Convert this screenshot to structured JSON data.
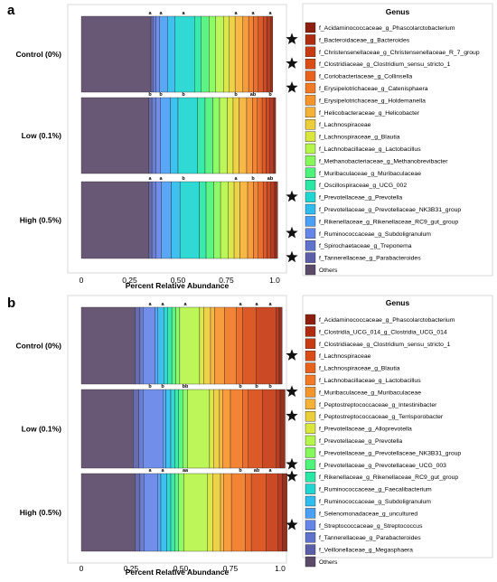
{
  "chart_data": [
    {
      "panel": "a",
      "type": "bar",
      "orientation": "horizontal-stacked",
      "xlabel": "Percent Relative Abundance",
      "xticks": [
        "0",
        "0.25",
        "0.50",
        "0.75",
        "1.0"
      ],
      "xlim": [
        0,
        1
      ],
      "legend_title": "Genus",
      "legend_position": "right",
      "groups": [
        "Control (0%)",
        "Low (0.1%)",
        "High (0.5%)"
      ],
      "series": [
        {
          "name": "Others",
          "color": "#5b4a6a",
          "values": [
            0.36,
            0.35,
            0.35
          ]
        },
        {
          "name": "f_Tannerellaceae_g_Parabacteroides",
          "starred": true,
          "color": "#5a5fa8",
          "values": [
            0.01,
            0.015,
            0.015
          ]
        },
        {
          "name": "f_Spirochaetaceae_g_Treponema",
          "color": "#5f73cc",
          "values": [
            0.015,
            0.02,
            0.02
          ]
        },
        {
          "name": "f_Ruminococcaceae_g_Subdoligranulum",
          "starred": true,
          "color": "#6586e8",
          "values": [
            0.02,
            0.025,
            0.03
          ]
        },
        {
          "name": "f_Rikenellaceae_g_Rikenellaceae_RC9_gut_group",
          "color": "#4ba0f5",
          "values": [
            0.04,
            0.05,
            0.05
          ]
        },
        {
          "name": "f_Prevotellaceae_g_Prevotellaceae_NK3B31_group",
          "color": "#2fbcee",
          "values": [
            0.04,
            0.04,
            0.045
          ]
        },
        {
          "name": "f_Prevotellaceae_g_Prevotella",
          "starred": true,
          "color": "#1fd6d0",
          "values": [
            0.1,
            0.1,
            0.1
          ]
        },
        {
          "name": "f_Oscillospiraceae_g_UCG_002",
          "color": "#29e8a5",
          "values": [
            0.035,
            0.04,
            0.035
          ]
        },
        {
          "name": "f_Muribaculaceae_g_Muribaculaceae",
          "color": "#4ef37a",
          "values": [
            0.04,
            0.04,
            0.04
          ]
        },
        {
          "name": "f_Methanobacteriaceae_g_Methanobrevibacter",
          "color": "#86f95a",
          "values": [
            0.035,
            0.035,
            0.035
          ]
        },
        {
          "name": "f_Lachnobacillaceae_g_Lactobacillus",
          "color": "#b6f54a",
          "values": [
            0.04,
            0.04,
            0.04
          ]
        },
        {
          "name": "f_Lachnospiraceae_g_Blautia",
          "color": "#d9e63b",
          "values": [
            0.03,
            0.03,
            0.03
          ]
        },
        {
          "name": "f_Lachnospiraceae",
          "color": "#eccd3a",
          "values": [
            0.03,
            0.03,
            0.03
          ]
        },
        {
          "name": "f_Helicobacteraceae_g_Helicobacter",
          "color": "#f6b236",
          "values": [
            0.04,
            0.04,
            0.04
          ]
        },
        {
          "name": "f_Erysipelotrichaceae_g_Holdemanella",
          "color": "#f7952d",
          "values": [
            0.03,
            0.03,
            0.03
          ]
        },
        {
          "name": "f_Erysipelotrichaceae_g_Catenisphaera",
          "starred": true,
          "color": "#f27a24",
          "values": [
            0.025,
            0.025,
            0.025
          ]
        },
        {
          "name": "f_Coriobacteriaceae_g_Collinsella",
          "color": "#e8621c",
          "values": [
            0.025,
            0.025,
            0.025
          ]
        },
        {
          "name": "f_Clostridiaceae_g_Clostridium_sensu_stricto_1",
          "starred": true,
          "color": "#d94c15",
          "values": [
            0.025,
            0.02,
            0.02
          ]
        },
        {
          "name": "f_Christensenellaceae_g_Christensenellaceae_R_7_group",
          "color": "#c73a12",
          "values": [
            0.02,
            0.02,
            0.02
          ]
        },
        {
          "name": "f_Bacteroidaceae_g_Bacteroides",
          "starred": true,
          "color": "#b02c10",
          "values": [
            0.02,
            0.02,
            0.02
          ]
        },
        {
          "name": "f_Acidaminococcaceae_g_Phascolarctobacterium",
          "color": "#8e1f0c",
          "values": [
            0.01,
            0.01,
            0.015
          ]
        }
      ],
      "significance_letters": [
        [
          "a",
          "a",
          "a",
          "a",
          "a",
          "a"
        ],
        [
          "b",
          "b",
          "b",
          "b",
          "ab",
          "b"
        ],
        [
          "a",
          "a",
          "b",
          "a",
          "b",
          "ab"
        ]
      ]
    },
    {
      "panel": "b",
      "type": "bar",
      "orientation": "horizontal-stacked",
      "xlabel": "Percent Relative Abundance",
      "xticks": [
        "0",
        "0.25",
        "0.50",
        "0.75",
        "1.0"
      ],
      "xlim": [
        0,
        1
      ],
      "legend_title": "Genus",
      "legend_position": "right",
      "groups": [
        "Control (0%)",
        "Low (0.1%)",
        "High (0.5%)"
      ],
      "series": [
        {
          "name": "Others",
          "color": "#5b4a6a",
          "values": [
            0.27,
            0.26,
            0.27
          ]
        },
        {
          "name": "f_Veillonellaceae_g_Megasphaera",
          "color": "#5a5fa8",
          "values": [
            0.025,
            0.03,
            0.025
          ]
        },
        {
          "name": "f_Tannerellaceae_g_Parabacteroides",
          "color": "#5f73cc",
          "values": [
            0.015,
            0.02,
            0.02
          ]
        },
        {
          "name": "f_Streptococcaceae_g_Streptococcus",
          "starred": true,
          "color": "#6586e8",
          "values": [
            0.06,
            0.1,
            0.07
          ]
        },
        {
          "name": "f_Selenomonadaceae_g_uncultured",
          "color": "#4ba0f5",
          "values": [
            0.015,
            0.015,
            0.015
          ]
        },
        {
          "name": "f_Ruminococcaceae_g_Subdoligranulum",
          "color": "#2fbcee",
          "values": [
            0.03,
            0.025,
            0.03
          ]
        },
        {
          "name": "f_Ruminococcaceae_g_Faecalibacterium",
          "color": "#1fd6d0",
          "values": [
            0.02,
            0.02,
            0.02
          ]
        },
        {
          "name": "f_Rikenellaceae_g_Rikenellaceae_RC9_gut_group",
          "starred": true,
          "color": "#29e8a5",
          "values": [
            0.02,
            0.02,
            0.02
          ]
        },
        {
          "name": "f_Prevotellaceae_g_Prevotellaceae_UCG_003",
          "starred": true,
          "color": "#4ef37a",
          "values": [
            0.02,
            0.02,
            0.02
          ]
        },
        {
          "name": "f_Prevotellaceae_g_Prevotellaceae_NK3B31_group",
          "color": "#86f95a",
          "values": [
            0.02,
            0.025,
            0.025
          ]
        },
        {
          "name": "f_Prevotellaceae_g_Prevotella",
          "color": "#b6f54a",
          "values": [
            0.1,
            0.11,
            0.12
          ]
        },
        {
          "name": "f_Prevotellaceae_g_Alloprevotella",
          "color": "#d9e63b",
          "values": [
            0.02,
            0.02,
            0.025
          ]
        },
        {
          "name": "f_Peptostreptococcaceae_g_Terrisporobacter",
          "starred": true,
          "color": "#eccd3a",
          "values": [
            0.035,
            0.03,
            0.04
          ]
        },
        {
          "name": "f_Peptostreptococcaceae_g_Intestinibacter",
          "color": "#f6b236",
          "values": [
            0.02,
            0.015,
            0.015
          ]
        },
        {
          "name": "f_Muribaculaceae_g_Muribaculaceae",
          "starred": true,
          "color": "#f7952d",
          "values": [
            0.05,
            0.04,
            0.04
          ]
        },
        {
          "name": "f_Lachnobacillaceae_g_Lactobacillus",
          "color": "#f27a24",
          "values": [
            0.06,
            0.06,
            0.07
          ]
        },
        {
          "name": "f_Lachnospiraceae_g_Blautia",
          "color": "#e8621c",
          "values": [
            0.03,
            0.03,
            0.03
          ]
        },
        {
          "name": "f_Lachnospiraceae",
          "starred": true,
          "color": "#d94c15",
          "values": [
            0.07,
            0.07,
            0.075
          ]
        },
        {
          "name": "f_Clostridiaceae_g_Clostridium_sensu_stricto_1",
          "color": "#c73a12",
          "values": [
            0.1,
            0.07,
            0.06
          ]
        },
        {
          "name": "f_Clostridia_UCG_014_g_Clostridia_UCG_014",
          "color": "#b02c10",
          "values": [
            0.015,
            0.02,
            0.02
          ]
        },
        {
          "name": "f_Acidaminococcaceae_g_Phascolarctobacterium",
          "color": "#8e1f0c",
          "values": [
            0.015,
            0.025,
            0.025
          ]
        }
      ],
      "significance_letters": [
        [
          "a",
          "a",
          "a",
          "a",
          "a",
          "a"
        ],
        [
          "b",
          "b",
          "bb",
          "b",
          "b",
          "b"
        ],
        [
          "a",
          "a",
          "aa",
          "b",
          "ab",
          "a"
        ]
      ]
    }
  ]
}
